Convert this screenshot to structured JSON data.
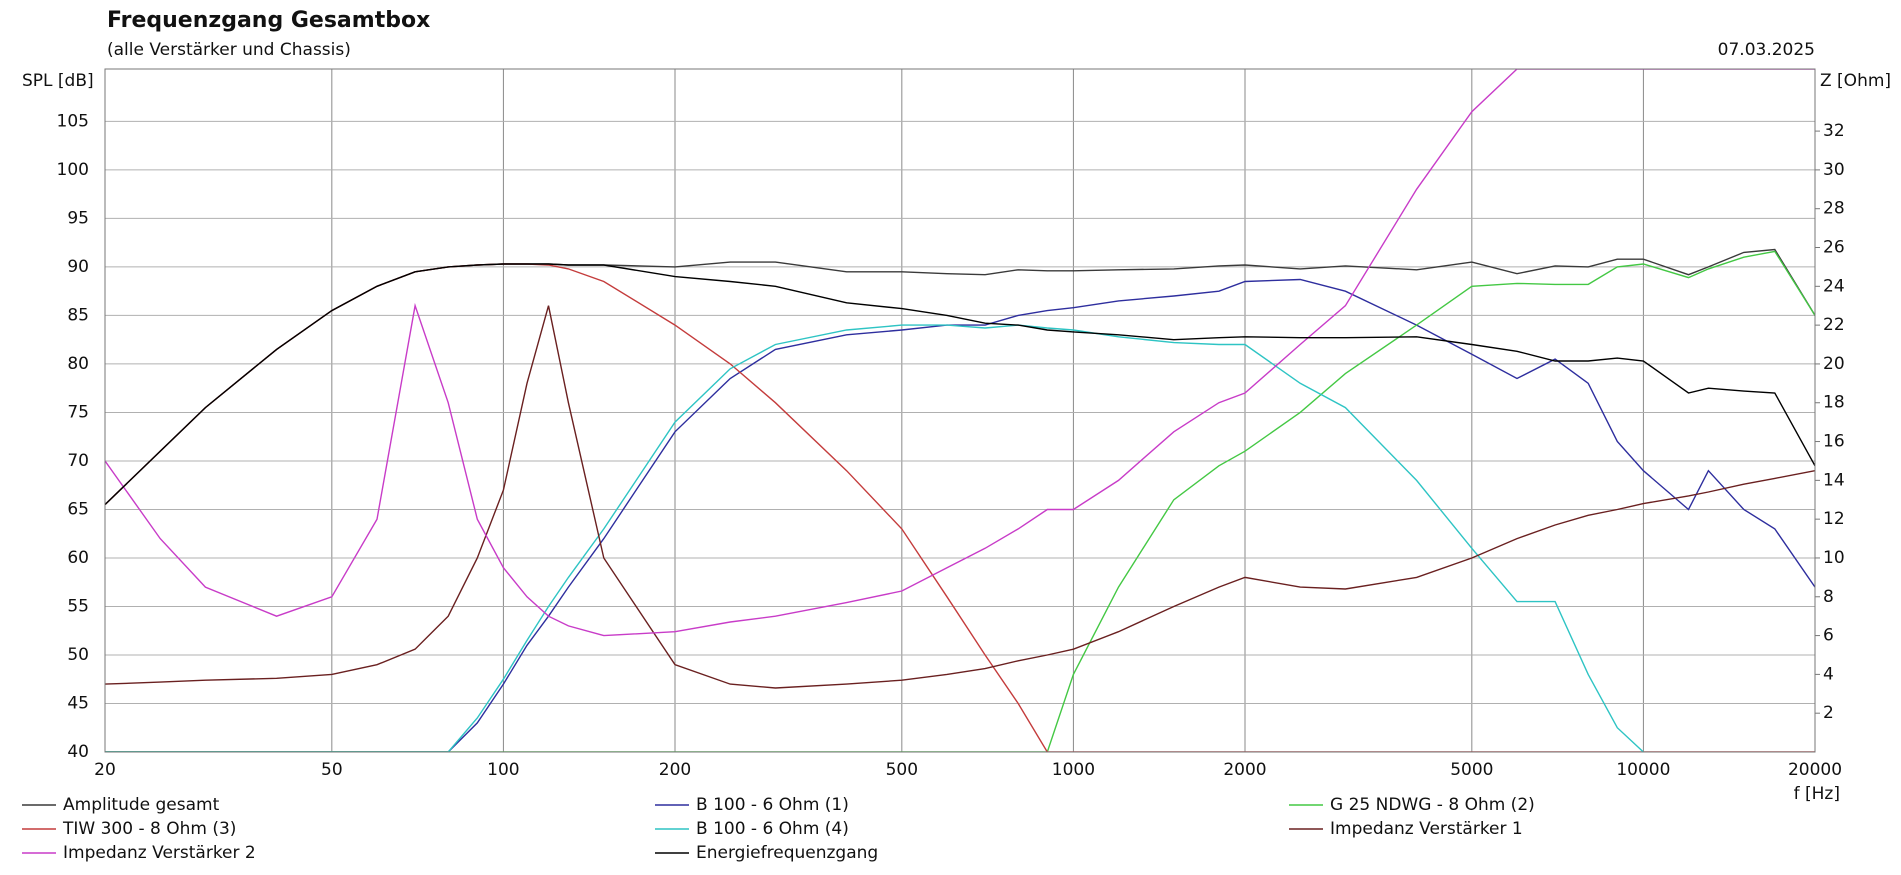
{
  "chart_data": {
    "type": "line",
    "title": "Frequenzgang Gesamtbox",
    "subtitle": "(alle Verstärker und Chassis)",
    "date": "07.03.2025",
    "y_label": "SPL [dB]",
    "y2_label": "Z [Ohm]",
    "x_label": "f [Hz]",
    "log_x": true,
    "grid": true,
    "xlim": [
      20,
      20000
    ],
    "xticks": [
      20,
      50,
      100,
      200,
      500,
      1000,
      2000,
      5000,
      10000,
      20000
    ],
    "ylim": [
      40,
      110.4
    ],
    "yticks": [
      40,
      45,
      50,
      55,
      60,
      65,
      70,
      75,
      80,
      85,
      90,
      95,
      100,
      105
    ],
    "y2lim": [
      0,
      35.2
    ],
    "y2ticks": [
      2,
      4,
      6,
      8,
      10,
      12,
      14,
      16,
      18,
      20,
      22,
      24,
      26,
      28,
      30,
      32
    ],
    "x": [
      20,
      25,
      30,
      40,
      50,
      60,
      70,
      80,
      90,
      100,
      110,
      120,
      130,
      150,
      200,
      250,
      300,
      400,
      500,
      600,
      700,
      800,
      900,
      1000,
      1200,
      1500,
      1800,
      2000,
      2500,
      3000,
      4000,
      5000,
      6000,
      7000,
      8000,
      9000,
      10000,
      12000,
      13000,
      15000,
      17000,
      20000
    ],
    "series": [
      {
        "name": "Amplitude gesamt",
        "color": "#3a3a3a",
        "values": [
          65.5,
          71,
          75.5,
          81.5,
          85.5,
          88,
          89.5,
          90,
          90.2,
          90.3,
          90.3,
          90.3,
          90.2,
          90.2,
          90,
          90.5,
          90.5,
          89.5,
          89.5,
          89.3,
          89.2,
          89.7,
          89.6,
          89.6,
          89.7,
          89.8,
          90.1,
          90.2,
          89.8,
          90.1,
          89.7,
          90.5,
          89.3,
          90.1,
          90,
          90.8,
          90.8,
          89.2,
          90,
          91.5,
          91.8,
          85
        ]
      },
      {
        "name": "B 100 - 6 Ohm (1)",
        "color": "#2e2e9e",
        "values": [
          40,
          40,
          40,
          40,
          40,
          40,
          40,
          40,
          43,
          47,
          51,
          54,
          57,
          62,
          73,
          78.5,
          81.5,
          83,
          83.5,
          84,
          84,
          85,
          85.5,
          85.8,
          86.5,
          87,
          87.5,
          88.5,
          88.7,
          87.5,
          84,
          81,
          78.5,
          80.5,
          78,
          72,
          69,
          65,
          69,
          65,
          63,
          57
        ]
      },
      {
        "name": "G 25 NDWG - 8 Ohm (2)",
        "color": "#44c844",
        "values": [
          40,
          40,
          40,
          40,
          40,
          40,
          40,
          40,
          40,
          40,
          40,
          40,
          40,
          40,
          40,
          40,
          40,
          40,
          40,
          40,
          40,
          40,
          40,
          48,
          57,
          66,
          69.5,
          71,
          75,
          79,
          84,
          88,
          88.3,
          88.2,
          88.2,
          90,
          90.3,
          88.9,
          89.8,
          91,
          91.6,
          85
        ]
      },
      {
        "name": "TIW 300 - 8 Ohm (3)",
        "color": "#c43c3c",
        "values": [
          65.5,
          71,
          75.5,
          81.5,
          85.5,
          88,
          89.5,
          90,
          90.2,
          90.3,
          90.3,
          90.2,
          89.8,
          88.5,
          84,
          80,
          76,
          69,
          63,
          56,
          50,
          45,
          40,
          40,
          40,
          40,
          40,
          40,
          40,
          40,
          40,
          40,
          40,
          40,
          40,
          40,
          40,
          40,
          40,
          40,
          40,
          40
        ]
      },
      {
        "name": "B 100 - 6 Ohm (4)",
        "color": "#2ec4c4",
        "values": [
          40,
          40,
          40,
          40,
          40,
          40,
          40,
          40,
          43.5,
          47.5,
          51.5,
          55,
          58,
          63,
          74,
          79.5,
          82,
          83.5,
          84,
          84,
          83.7,
          84,
          83.7,
          83.5,
          82.8,
          82.2,
          82,
          82,
          78,
          75.5,
          68,
          61,
          55.5,
          55.5,
          48,
          42.5,
          40,
          null,
          null,
          null,
          null,
          null
        ]
      },
      {
        "name": "Impedanz Verstärker 1",
        "color": "#6a2020",
        "axis": "y2",
        "values": [
          3.5,
          3.6,
          3.7,
          3.8,
          4,
          4.5,
          5.3,
          7,
          10,
          13.5,
          19,
          23,
          18,
          10,
          4.5,
          3.5,
          3.3,
          3.5,
          3.7,
          4,
          4.3,
          4.7,
          5,
          5.3,
          6.2,
          7.5,
          8.5,
          9,
          8.5,
          8.4,
          9,
          10,
          11,
          11.7,
          12.2,
          12.5,
          12.8,
          13.2,
          13.4,
          13.8,
          14.1,
          14.5
        ]
      },
      {
        "name": "Impedanz Verstärker 2",
        "color": "#c83cc8",
        "axis": "y2",
        "values": [
          15,
          11,
          8.5,
          7,
          8,
          12,
          23,
          18,
          12,
          9.5,
          8,
          7,
          6.5,
          6,
          6.2,
          6.7,
          7,
          7.7,
          8.3,
          9.5,
          10.5,
          11.5,
          12.5,
          12.5,
          14,
          16.5,
          18,
          18.5,
          21,
          23,
          29,
          33,
          35.2,
          35.2,
          35.2,
          35.2,
          35.2,
          35.2,
          35.2,
          35.2,
          35.2,
          35.2
        ]
      },
      {
        "name": "Energiefrequenzgang",
        "color": "#000000",
        "values": [
          65.5,
          71,
          75.5,
          81.5,
          85.5,
          88,
          89.5,
          90,
          90.2,
          90.3,
          90.3,
          90.3,
          90.2,
          90.2,
          89,
          88.5,
          88,
          86.3,
          85.7,
          85,
          84.2,
          84,
          83.5,
          83.3,
          83,
          82.5,
          82.7,
          82.8,
          82.7,
          82.7,
          82.8,
          82,
          81.3,
          80.3,
          80.3,
          80.6,
          80.3,
          77,
          77.5,
          77.2,
          77,
          69.5
        ]
      }
    ]
  }
}
